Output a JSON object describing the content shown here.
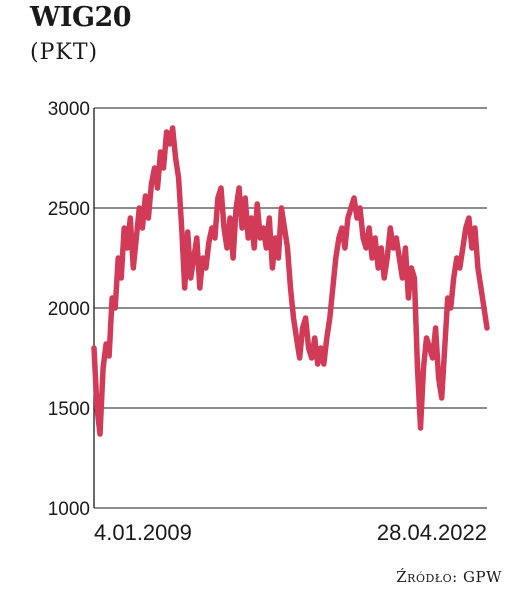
{
  "chart_data": {
    "type": "line",
    "title": "WIG20",
    "subtitle": "(PKT)",
    "ylim": [
      1000,
      3000
    ],
    "yticks": [
      1000,
      1500,
      2000,
      2500,
      3000
    ],
    "grid": true,
    "x_labels": {
      "start": "4.01.2009",
      "end": "28.04.2022"
    },
    "series_color": "#d23b58",
    "series": [
      {
        "values": [
          1800,
          1500,
          1370,
          1700,
          1820,
          1760,
          2050,
          2000,
          2250,
          2150,
          2400,
          2300,
          2450,
          2200,
          2350,
          2500,
          2400,
          2560,
          2450,
          2620,
          2700,
          2600,
          2780,
          2700,
          2880,
          2820,
          2900,
          2750,
          2650,
          2400,
          2100,
          2380,
          2150,
          2250,
          2350,
          2100,
          2250,
          2200,
          2330,
          2400,
          2350,
          2550,
          2600,
          2400,
          2300,
          2450,
          2250,
          2500,
          2600,
          2400,
          2550,
          2350,
          2450,
          2300,
          2520,
          2350,
          2400,
          2300,
          2450,
          2200,
          2350,
          2250,
          2500,
          2400,
          2300,
          2100,
          1950,
          1850,
          1750,
          1900,
          1950,
          1800,
          1750,
          1850,
          1720,
          1800,
          1720,
          1850,
          1950,
          2100,
          2250,
          2350,
          2400,
          2300,
          2450,
          2500,
          2550,
          2450,
          2500,
          2350,
          2300,
          2400,
          2250,
          2350,
          2200,
          2300,
          2150,
          2250,
          2400,
          2300,
          2350,
          2250,
          2150,
          2300,
          2050,
          2200,
          2150,
          1700,
          1400,
          1700,
          1850,
          1800,
          1750,
          1900,
          1650,
          1550,
          1800,
          2050,
          2000,
          2150,
          2250,
          2200,
          2300,
          2400,
          2450,
          2300,
          2400,
          2200,
          2100,
          2000,
          1900
        ]
      }
    ]
  },
  "source": {
    "label": "Źródło:",
    "value": "GPW"
  }
}
